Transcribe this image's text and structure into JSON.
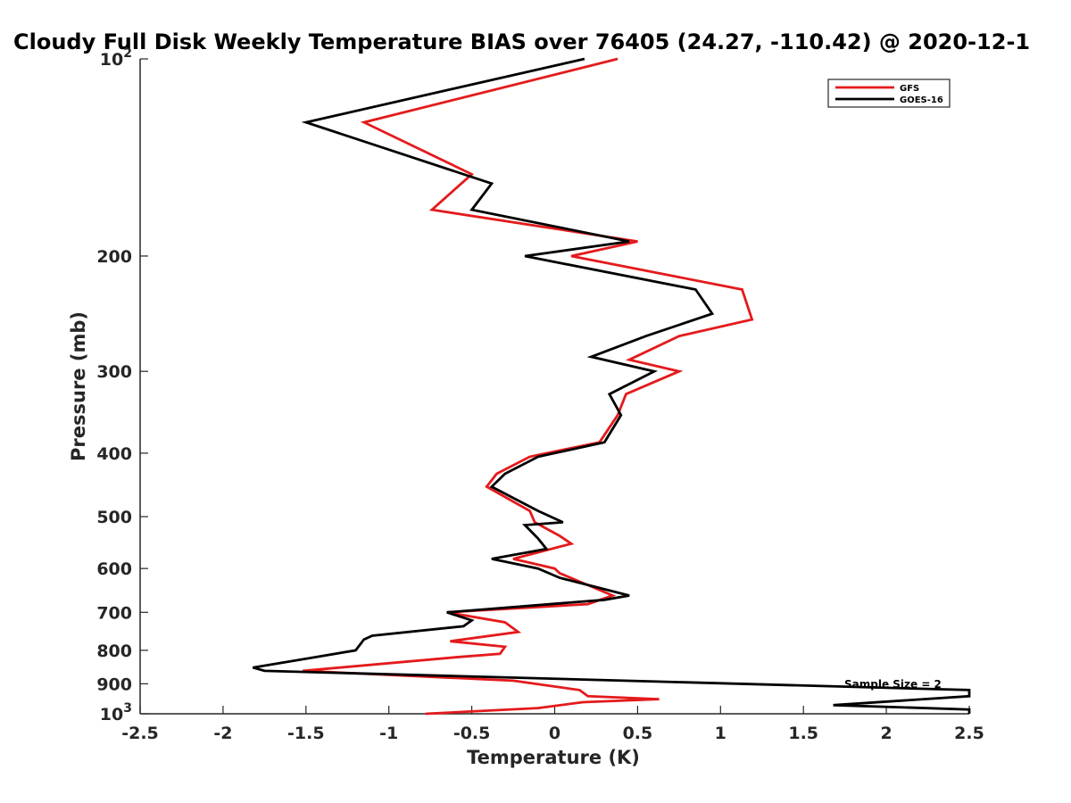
{
  "chart_data": {
    "type": "line",
    "title": "Cloudy Full Disk Weekly Temperature BIAS over 76405 (24.27, -110.42) @ 2020-12-1",
    "xlabel": "Temperature (K)",
    "ylabel": "Pressure (mb)",
    "xlim": [
      -2.5,
      2.5
    ],
    "ylim": [
      100,
      1000
    ],
    "yscale": "log",
    "y_reversed": true,
    "x_ticks": [
      -2.5,
      -2,
      -1.5,
      -1,
      -0.5,
      0,
      0.5,
      1,
      1.5,
      2,
      2.5
    ],
    "x_tick_labels": [
      "-2.5",
      "-2",
      "-1.5",
      "-1",
      "-0.5",
      "0",
      "0.5",
      "1",
      "1.5",
      "2",
      "2.5"
    ],
    "y_ticks": [
      100,
      200,
      300,
      400,
      500,
      600,
      700,
      800,
      900,
      1000
    ],
    "y_tick_labels": [
      {
        "base": "10",
        "exp": "2"
      },
      {
        "base": "200"
      },
      {
        "base": "300"
      },
      {
        "base": "400"
      },
      {
        "base": "500"
      },
      {
        "base": "600"
      },
      {
        "base": "700"
      },
      {
        "base": "800"
      },
      {
        "base": "900"
      },
      {
        "base": "10",
        "exp": "3"
      }
    ],
    "grid": false,
    "legend_position": "top-right",
    "annotation": "Sample Size = 2",
    "series": [
      {
        "name": "GFS",
        "color": "#e41a1c",
        "points": [
          [
            0.38,
            100
          ],
          [
            -1.15,
            125
          ],
          [
            -0.5,
            150
          ],
          [
            -0.74,
            170
          ],
          [
            0.5,
            190
          ],
          [
            0.1,
            200
          ],
          [
            1.13,
            225
          ],
          [
            1.19,
            250
          ],
          [
            0.75,
            265
          ],
          [
            0.45,
            288
          ],
          [
            0.75,
            300
          ],
          [
            0.43,
            325
          ],
          [
            0.38,
            350
          ],
          [
            0.27,
            385
          ],
          [
            -0.15,
            405
          ],
          [
            -0.35,
            430
          ],
          [
            -0.41,
            450
          ],
          [
            -0.15,
            490
          ],
          [
            -0.12,
            510
          ],
          [
            0.03,
            535
          ],
          [
            0.1,
            550
          ],
          [
            -0.25,
            580
          ],
          [
            0.0,
            600
          ],
          [
            0.03,
            610
          ],
          [
            0.35,
            660
          ],
          [
            0.2,
            680
          ],
          [
            -0.65,
            700
          ],
          [
            -0.3,
            725
          ],
          [
            -0.22,
            750
          ],
          [
            -0.63,
            775
          ],
          [
            -0.3,
            790
          ],
          [
            -0.33,
            810
          ],
          [
            -0.6,
            820
          ],
          [
            -1.52,
            860
          ],
          [
            -0.25,
            890
          ],
          [
            0.15,
            920
          ],
          [
            0.2,
            940
          ],
          [
            0.63,
            950
          ],
          [
            0.17,
            960
          ],
          [
            -0.1,
            980
          ],
          [
            -0.78,
            1000
          ]
        ]
      },
      {
        "name": "GOES-16",
        "color": "#000000",
        "points": [
          [
            0.18,
            100
          ],
          [
            -1.5,
            125
          ],
          [
            -0.38,
            155
          ],
          [
            -0.5,
            170
          ],
          [
            0.45,
            190
          ],
          [
            -0.18,
            200
          ],
          [
            0.85,
            225
          ],
          [
            0.95,
            245
          ],
          [
            0.55,
            265
          ],
          [
            0.22,
            285
          ],
          [
            0.6,
            300
          ],
          [
            0.33,
            325
          ],
          [
            0.4,
            350
          ],
          [
            0.3,
            385
          ],
          [
            -0.1,
            405
          ],
          [
            -0.3,
            430
          ],
          [
            -0.38,
            450
          ],
          [
            -0.1,
            490
          ],
          [
            0.05,
            510
          ],
          [
            -0.18,
            515
          ],
          [
            -0.1,
            540
          ],
          [
            -0.05,
            560
          ],
          [
            -0.38,
            580
          ],
          [
            -0.1,
            600
          ],
          [
            0.03,
            620
          ],
          [
            0.45,
            660
          ],
          [
            0.3,
            670
          ],
          [
            -0.65,
            700
          ],
          [
            -0.5,
            720
          ],
          [
            -0.55,
            735
          ],
          [
            -1.1,
            760
          ],
          [
            -1.15,
            770
          ],
          [
            -1.2,
            800
          ],
          [
            -1.45,
            820
          ],
          [
            -1.82,
            850
          ],
          [
            -1.75,
            860
          ],
          [
            2.5,
            920
          ],
          [
            2.5,
            940
          ],
          [
            1.68,
            970
          ],
          [
            2.5,
            985
          ],
          [
            2.5,
            1000
          ]
        ]
      }
    ]
  }
}
